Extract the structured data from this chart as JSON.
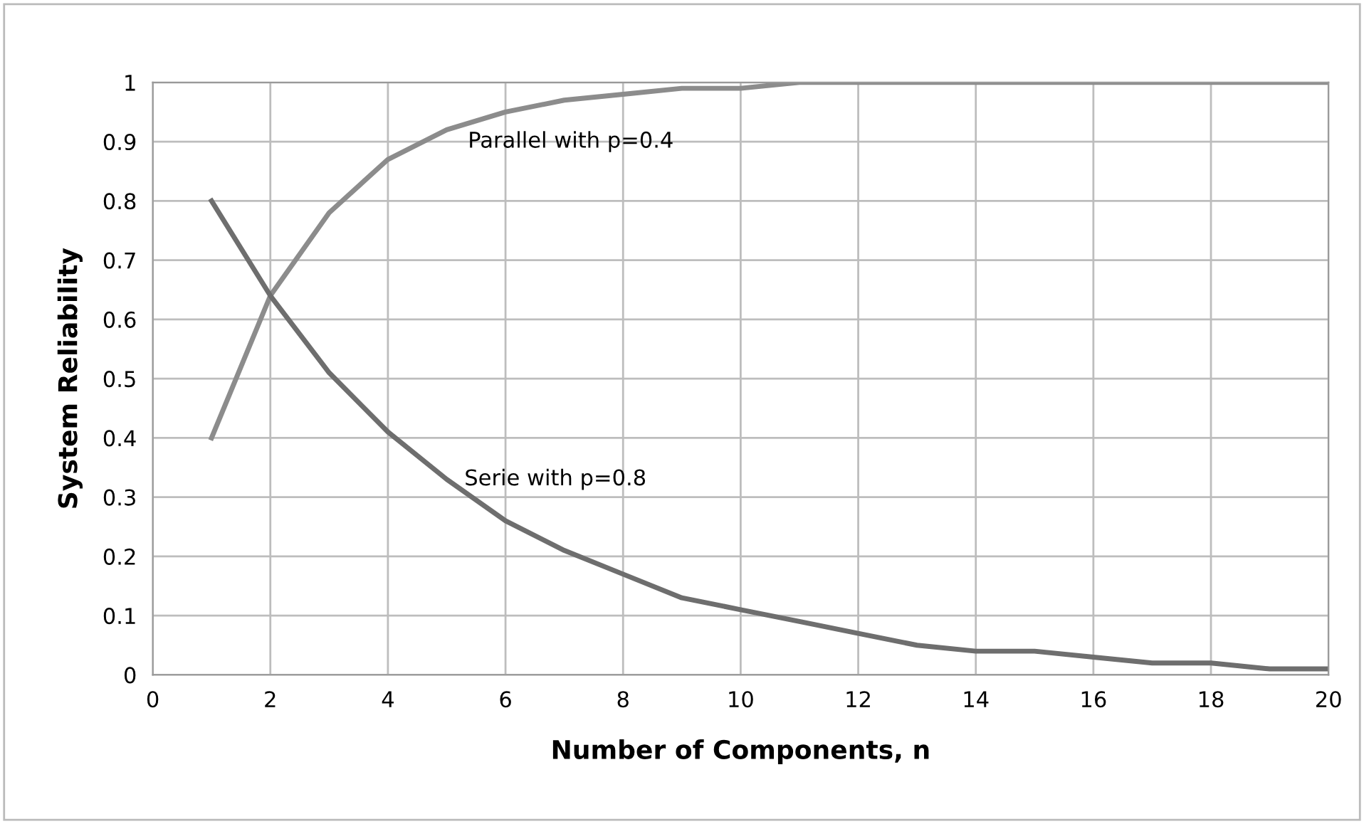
{
  "chart_data": {
    "type": "line",
    "xlabel": "Number of Components, n",
    "ylabel": "System Reliability",
    "x": [
      1,
      2,
      3,
      4,
      5,
      6,
      7,
      8,
      9,
      10,
      11,
      12,
      13,
      14,
      15,
      16,
      17,
      18,
      19,
      20
    ],
    "series": [
      {
        "color": "#8c8c8c",
        "values": [
          0.4,
          0.64,
          0.78,
          0.87,
          0.92,
          0.95,
          0.97,
          0.98,
          0.99,
          0.99,
          1.0,
          1.0,
          1.0,
          1.0,
          1.0,
          1.0,
          1.0,
          1.0,
          1.0,
          1.0
        ]
      },
      {
        "color": "#6e6e6e",
        "values": [
          0.8,
          0.64,
          0.51,
          0.41,
          0.33,
          0.26,
          0.21,
          0.17,
          0.13,
          0.11,
          0.09,
          0.07,
          0.05,
          0.04,
          0.04,
          0.03,
          0.02,
          0.02,
          0.01,
          0.01
        ]
      }
    ],
    "annotations": [
      "Parallel with p=0.4",
      "Serie with p=0.8"
    ],
    "xlim": [
      0,
      20
    ],
    "ylim": [
      0,
      1
    ],
    "xticks": [
      0,
      2,
      4,
      6,
      8,
      10,
      12,
      14,
      16,
      18,
      20
    ],
    "yticks": [
      0,
      0.1,
      0.2,
      0.3,
      0.4,
      0.5,
      0.6,
      0.7,
      0.8,
      0.9,
      1
    ],
    "grid": true,
    "legend": false,
    "marker": "none",
    "line_style": "solid"
  }
}
